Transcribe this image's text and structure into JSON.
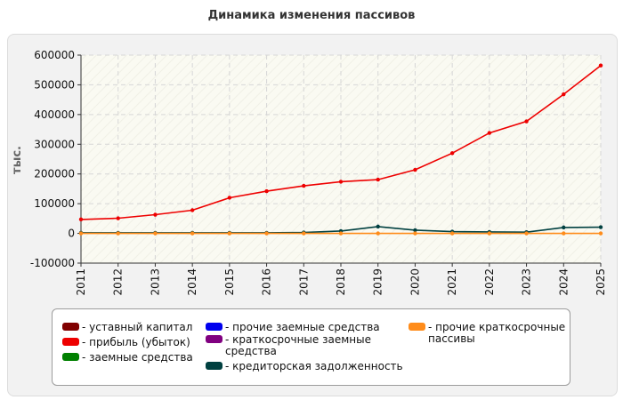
{
  "chart_data": {
    "type": "line",
    "title": "Динамика изменения пассивов",
    "ylabel": "тыс.",
    "xlabel": "",
    "ylim": [
      -100000,
      600000
    ],
    "yticks": [
      -100000,
      0,
      100000,
      200000,
      300000,
      400000,
      500000,
      600000
    ],
    "ytick_labels": [
      "-100000",
      "0",
      "100000",
      "200000",
      "300000",
      "400000",
      "500000",
      "600000"
    ],
    "categories": [
      "2011",
      "2012",
      "2013",
      "2014",
      "2015",
      "2016",
      "2017",
      "2018",
      "2019",
      "2020",
      "2021",
      "2022",
      "2023",
      "2024",
      "2025"
    ],
    "grid": true,
    "legend_position": "bottom",
    "series": [
      {
        "name": "уставный капитал",
        "color": "#800000",
        "values": [
          100,
          100,
          100,
          100,
          100,
          100,
          100,
          100,
          100,
          100,
          100,
          100,
          100,
          100,
          100
        ],
        "shown": false
      },
      {
        "name": "прибыль (убыток)",
        "color": "#ee0000",
        "values": [
          47000,
          51000,
          63000,
          78000,
          120000,
          142000,
          160000,
          174000,
          181000,
          214000,
          270000,
          338000,
          377000,
          468000,
          565000
        ],
        "shown": true
      },
      {
        "name": "заемные средства",
        "color": "#008000",
        "values": [
          1000,
          1000,
          1000,
          1000,
          1000,
          1000,
          1000,
          1000,
          1000,
          1000,
          1000,
          1000,
          1000,
          1000,
          1000
        ],
        "shown": false
      },
      {
        "name": "прочие заемные средства",
        "color": "#0000ee",
        "values": [
          0,
          0,
          0,
          0,
          0,
          0,
          0,
          0,
          0,
          0,
          0,
          0,
          0,
          0,
          0
        ],
        "shown": false
      },
      {
        "name": "краткосрочные заемные\nсредства",
        "color": "#800080",
        "values": [
          0,
          0,
          0,
          0,
          0,
          0,
          0,
          0,
          0,
          0,
          0,
          0,
          0,
          0,
          0
        ],
        "shown": false
      },
      {
        "name": "кредиторская задолженность",
        "color": "#004040",
        "values": [
          2000,
          2000,
          2000,
          2000,
          2000,
          2000,
          3000,
          8000,
          23000,
          11000,
          6000,
          5000,
          4000,
          20000,
          21000
        ],
        "shown": true
      },
      {
        "name": "прочие краткосрочные\nпассивы",
        "color": "#ff8c1a",
        "values": [
          0,
          0,
          0,
          0,
          0,
          0,
          0,
          0,
          0,
          0,
          0,
          0,
          0,
          0,
          0
        ],
        "shown": true
      }
    ]
  }
}
